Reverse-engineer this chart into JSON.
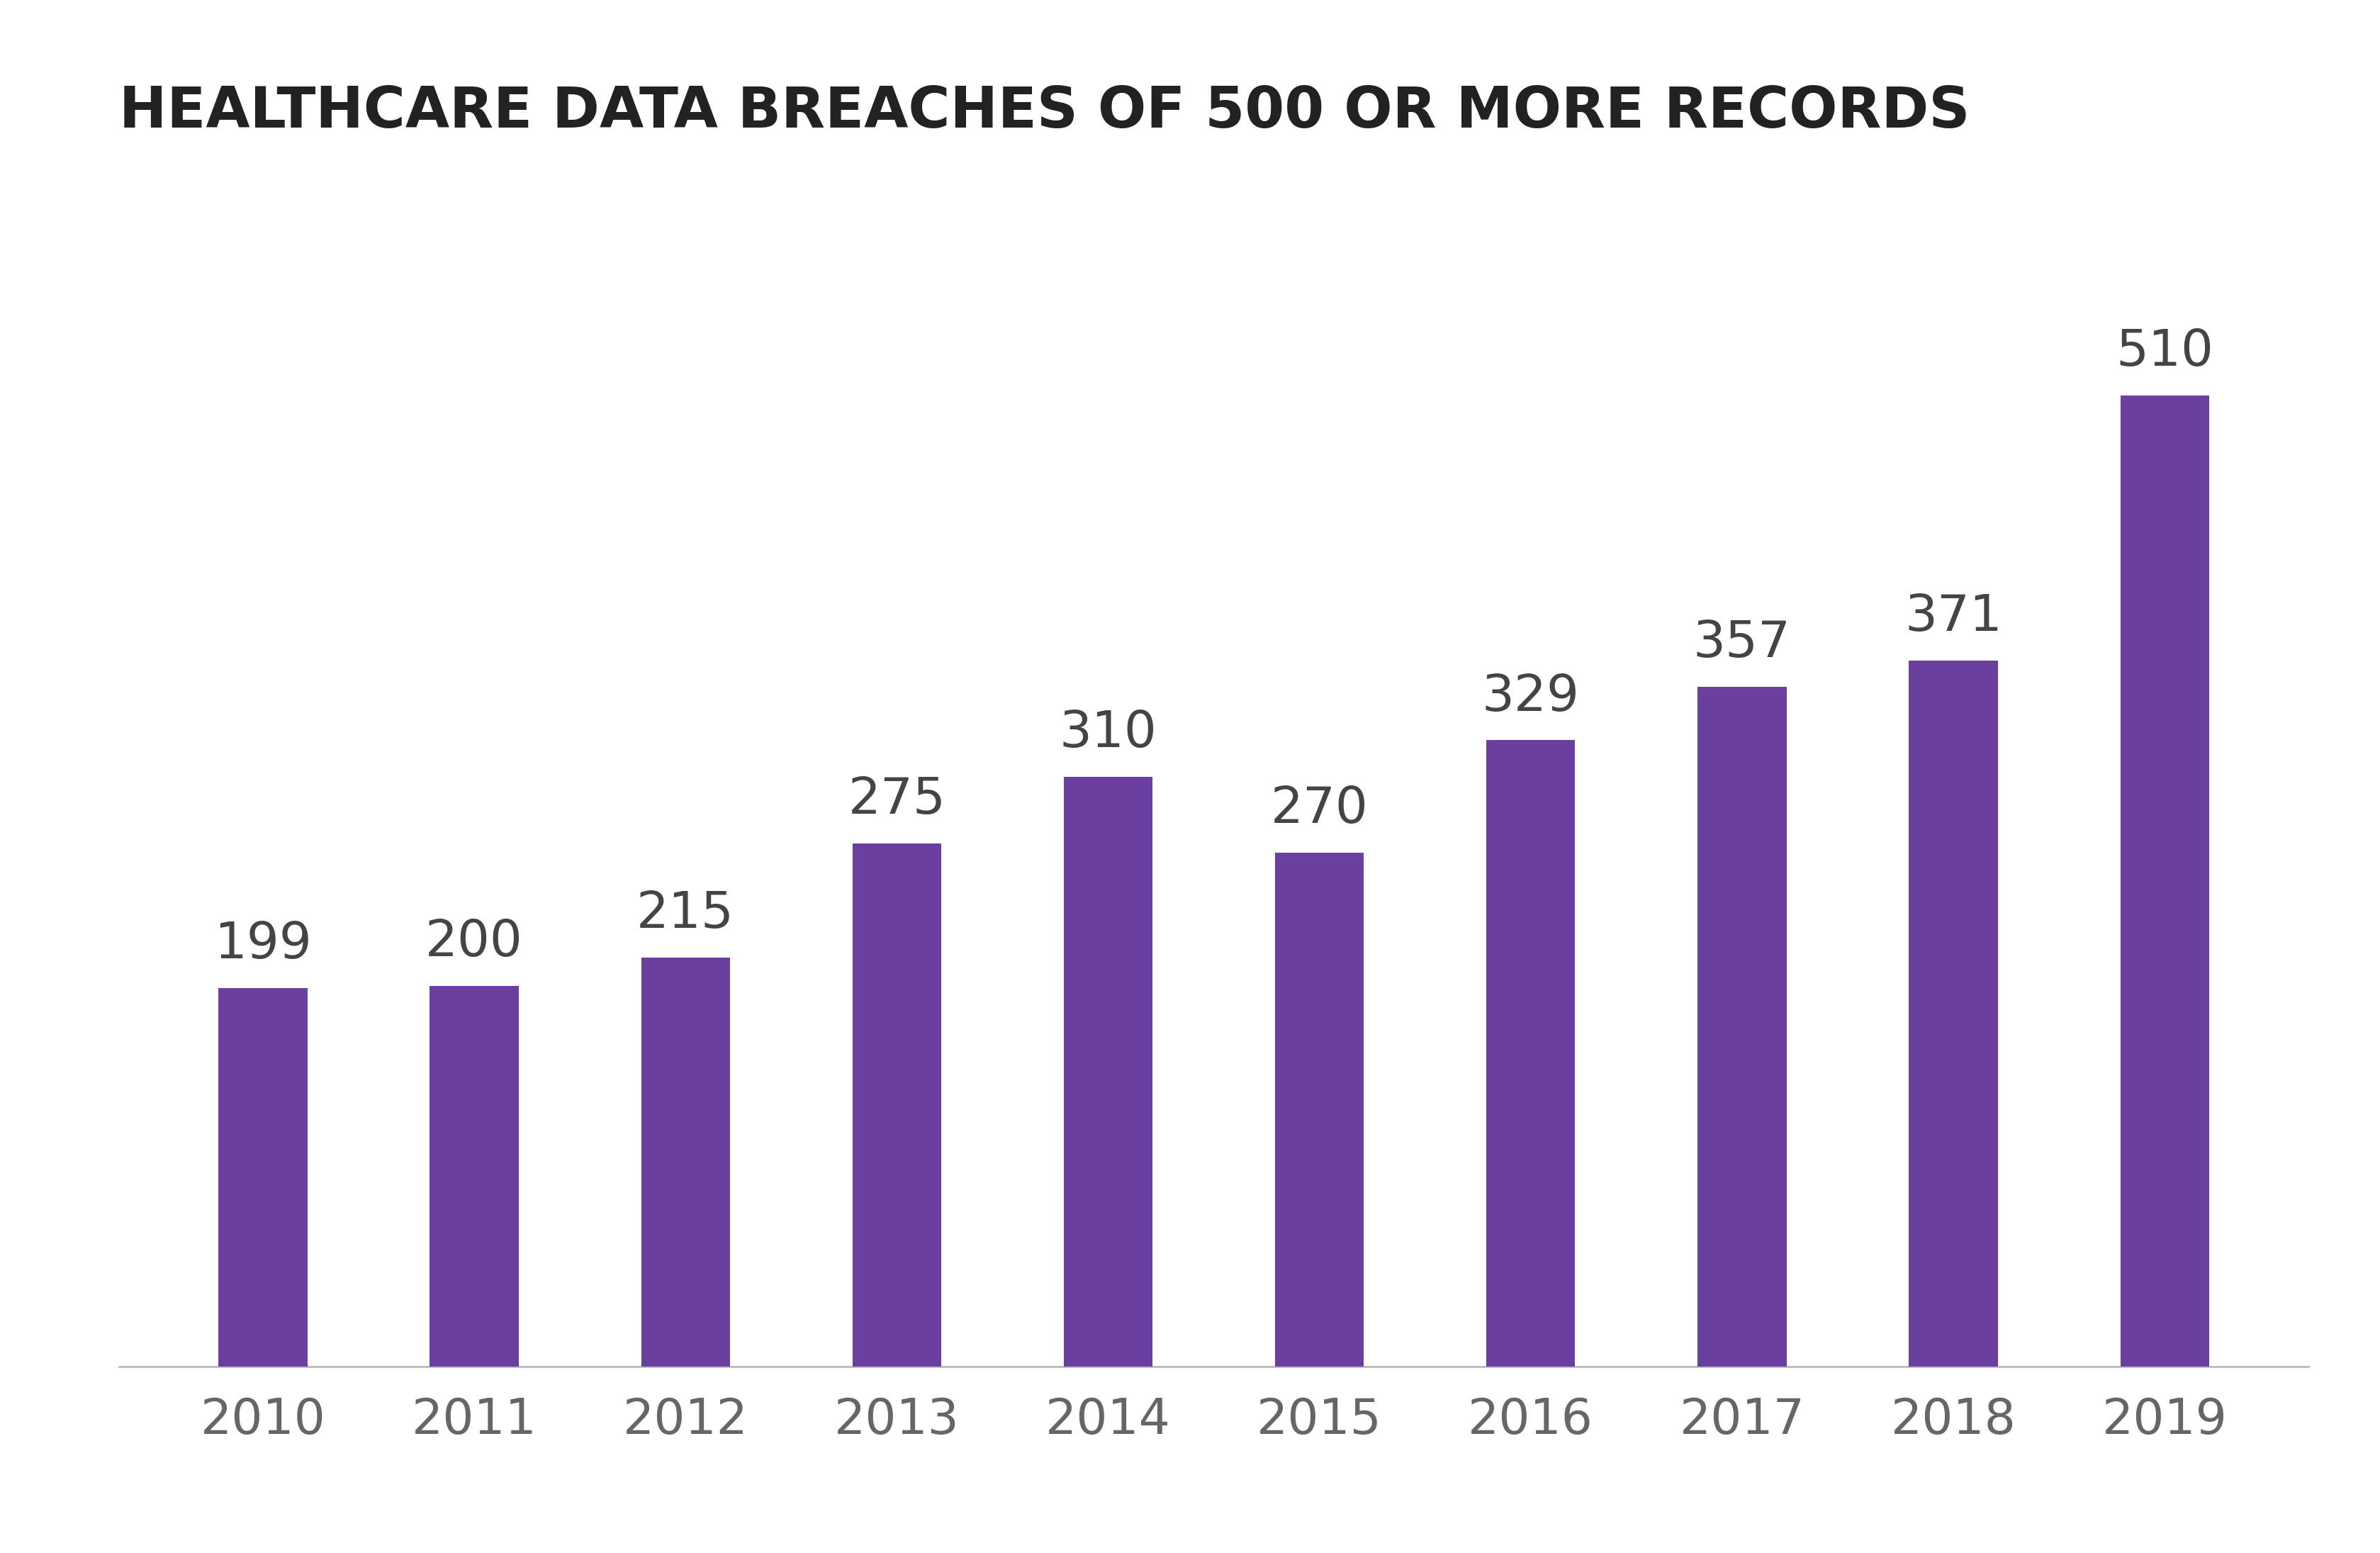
{
  "title": "HEALTHCARE DATA BREACHES OF 500 OR MORE RECORDS",
  "categories": [
    "2010",
    "2011",
    "2012",
    "2013",
    "2014",
    "2015",
    "2016",
    "2017",
    "2018",
    "2019"
  ],
  "values": [
    199,
    200,
    215,
    275,
    310,
    270,
    329,
    357,
    371,
    510
  ],
  "bar_color": "#6B3FA0",
  "background_color": "#ffffff",
  "title_fontsize": 58,
  "label_fontsize": 52,
  "tick_fontsize": 50,
  "title_color": "#222222",
  "label_color": "#444444",
  "tick_color": "#666666",
  "bar_width": 0.42,
  "ylim": [
    0,
    620
  ]
}
